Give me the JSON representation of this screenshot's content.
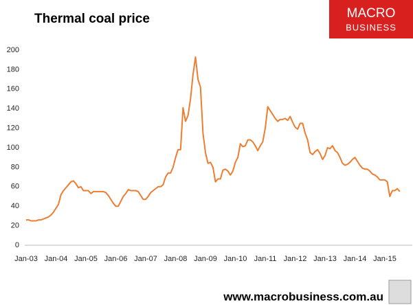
{
  "chart_data": {
    "type": "line",
    "title": "Thermal coal price",
    "logo": [
      "MACRO",
      "BUSINESS"
    ],
    "footer": "www.macrobusiness.com.au",
    "categories": [
      "Jan-03",
      null,
      null,
      null,
      null,
      null,
      null,
      null,
      null,
      null,
      null,
      null,
      "Jan-04",
      null,
      null,
      null,
      null,
      null,
      null,
      null,
      null,
      null,
      null,
      null,
      "Jan-05",
      null,
      null,
      null,
      null,
      null,
      null,
      null,
      null,
      null,
      null,
      null,
      "Jan-06",
      null,
      null,
      null,
      null,
      null,
      null,
      null,
      null,
      null,
      null,
      null,
      "Jan-07",
      null,
      null,
      null,
      null,
      null,
      null,
      null,
      null,
      null,
      null,
      null,
      "Jan-08",
      null,
      null,
      null,
      null,
      null,
      null,
      null,
      null,
      null,
      null,
      null,
      "Jan-09",
      null,
      null,
      null,
      null,
      null,
      null,
      null,
      null,
      null,
      null,
      null,
      "Jan-10",
      null,
      null,
      null,
      null,
      null,
      null,
      null,
      null,
      null,
      null,
      null,
      "Jan-11",
      null,
      null,
      null,
      null,
      null,
      null,
      null,
      null,
      null,
      null,
      null,
      "Jan-12",
      null,
      null,
      null,
      null,
      null,
      null,
      null,
      null,
      null,
      null,
      null,
      "Jan-13",
      null,
      null,
      null,
      null,
      null,
      null,
      null,
      null,
      null,
      null,
      null,
      "Jan-14",
      null,
      null,
      null,
      null,
      null,
      null,
      null,
      null,
      null,
      null,
      null,
      "Jan-15",
      null,
      null,
      null,
      null,
      null,
      null
    ],
    "series": [
      {
        "name": "Thermal coal price",
        "color": "#ed7d31",
        "values": [
          26,
          26,
          25,
          25,
          25,
          26,
          26,
          27,
          28,
          29,
          31,
          34,
          38,
          42,
          52,
          56,
          59,
          62,
          65,
          66,
          63,
          59,
          60,
          56,
          56,
          56,
          53,
          55,
          55,
          55,
          55,
          55,
          54,
          51,
          47,
          43,
          40,
          40,
          45,
          50,
          53,
          57,
          56,
          56,
          56,
          55,
          51,
          47,
          47,
          50,
          54,
          56,
          58,
          60,
          60,
          62,
          70,
          74,
          74,
          80,
          90,
          98,
          98,
          141,
          127,
          133,
          150,
          175,
          193,
          170,
          162,
          115,
          95,
          84,
          85,
          80,
          65,
          68,
          68,
          77,
          78,
          76,
          72,
          76,
          85,
          90,
          104,
          101,
          102,
          108,
          108,
          106,
          102,
          97,
          102,
          106,
          120,
          142,
          138,
          134,
          130,
          127,
          129,
          129,
          130,
          128,
          132,
          126,
          121,
          119,
          125,
          125,
          115,
          108,
          95,
          93,
          96,
          98,
          94,
          88,
          92,
          100,
          99,
          102,
          97,
          95,
          90,
          84,
          82,
          83,
          85,
          88,
          90,
          86,
          82,
          79,
          78,
          78,
          76,
          73,
          72,
          70,
          67,
          67,
          67,
          65,
          50,
          56,
          56,
          58,
          55
        ]
      }
    ],
    "ylim": [
      0,
      200
    ],
    "yticks": [
      0,
      20,
      40,
      60,
      80,
      100,
      120,
      140,
      160,
      180,
      200
    ],
    "grid": false
  }
}
